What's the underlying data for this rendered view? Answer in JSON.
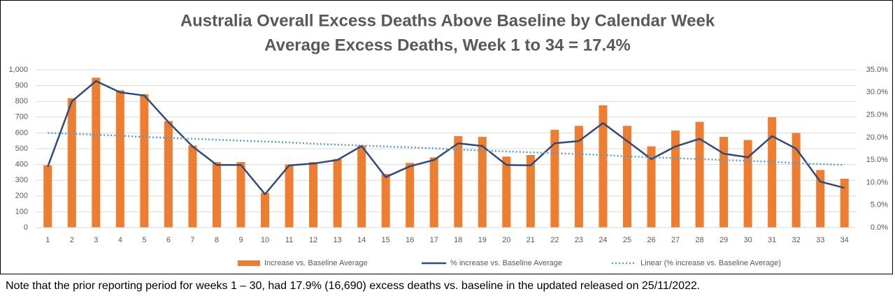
{
  "chart_data": {
    "type": "combo",
    "title": "Australia Overall Excess Deaths Above Baseline by Calendar Week",
    "subtitle": "Average Excess Deaths, Week 1 to 34 = 17.4%",
    "categories": [
      "1",
      "2",
      "3",
      "4",
      "5",
      "6",
      "7",
      "8",
      "9",
      "10",
      "11",
      "12",
      "13",
      "14",
      "15",
      "16",
      "17",
      "18",
      "19",
      "20",
      "21",
      "22",
      "23",
      "24",
      "25",
      "26",
      "27",
      "28",
      "29",
      "30",
      "31",
      "32",
      "33",
      "34"
    ],
    "series": [
      {
        "name": "Increase vs. Baseline Average",
        "type": "bar",
        "color": "#ed7d31",
        "values": [
          395,
          820,
          950,
          870,
          845,
          675,
          520,
          415,
          415,
          220,
          400,
          415,
          435,
          520,
          340,
          410,
          445,
          580,
          575,
          450,
          460,
          620,
          645,
          775,
          645,
          515,
          615,
          670,
          575,
          555,
          700,
          600,
          365,
          310
        ]
      },
      {
        "name": "% increase vs. Baseline Average",
        "type": "line",
        "axis": "y2",
        "color": "#2f4b7c",
        "values": [
          13.5,
          28.0,
          32.5,
          30.0,
          29.3,
          23.4,
          18.0,
          13.9,
          13.9,
          7.4,
          13.8,
          14.2,
          15.0,
          18.1,
          11.2,
          13.6,
          15.0,
          18.7,
          18.1,
          13.9,
          13.8,
          18.7,
          19.2,
          23.2,
          19.2,
          15.2,
          18.0,
          19.7,
          16.4,
          15.6,
          20.3,
          17.5,
          10.2,
          8.8
        ]
      },
      {
        "name": "Linear (% increase vs. Baseline Average)",
        "type": "line",
        "axis": "y2",
        "dash": "dotted",
        "color": "#5b9bd5",
        "values": [
          21.0,
          20.8,
          20.6,
          20.4,
          20.1,
          19.9,
          19.7,
          19.5,
          19.3,
          19.1,
          18.9,
          18.6,
          18.4,
          18.2,
          18.0,
          17.8,
          17.6,
          17.3,
          17.1,
          16.9,
          16.7,
          16.5,
          16.3,
          16.1,
          15.8,
          15.6,
          15.4,
          15.2,
          15.0,
          14.8,
          14.6,
          14.3,
          14.1,
          13.9
        ]
      }
    ],
    "ylim": [
      0,
      1000
    ],
    "yticks": [
      0,
      100,
      200,
      300,
      400,
      500,
      600,
      700,
      800,
      900,
      {
        "value": 1000,
        "label": "1,000"
      }
    ],
    "y2lim": [
      0,
      35
    ],
    "y2ticks": [
      {
        "value": 0,
        "label": "0.0%"
      },
      {
        "value": 5,
        "label": "5.0%"
      },
      {
        "value": 10,
        "label": "10.0%"
      },
      {
        "value": 15,
        "label": "15.0%"
      },
      {
        "value": 20,
        "label": "20.0%"
      },
      {
        "value": 25,
        "label": "25.0%"
      },
      {
        "value": 30,
        "label": "30.0%"
      },
      {
        "value": 35,
        "label": "35.0%"
      }
    ],
    "grid": true,
    "legend": "bottom",
    "note": "Note that the prior reporting period for weeks 1 – 30, had 17.9% (16,690) excess deaths vs. baseline in the updated released on 25/11/2022."
  }
}
